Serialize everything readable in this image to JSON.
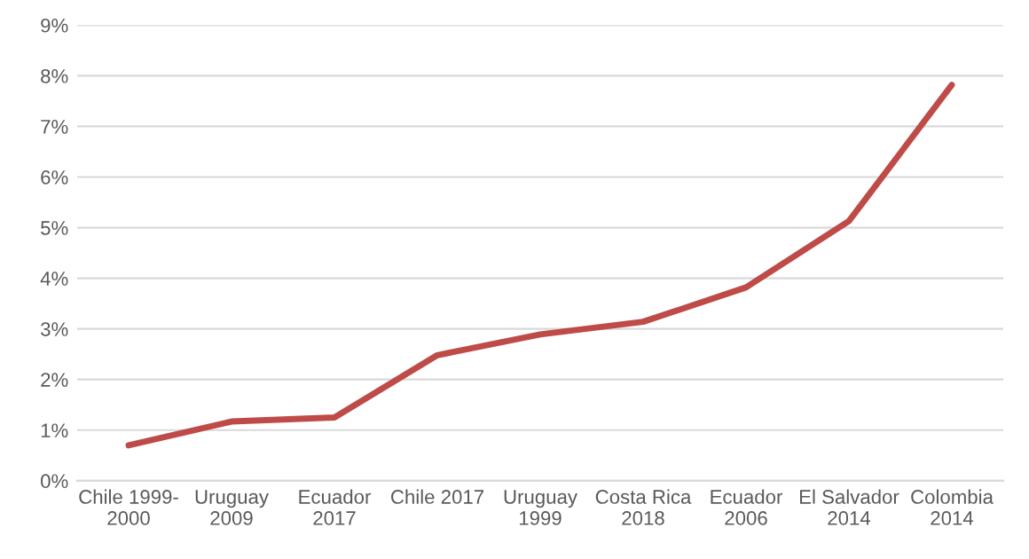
{
  "chart_data": {
    "type": "line",
    "categories": [
      "Chile 1999-\n2000",
      "Uruguay\n2009",
      "Ecuador\n2017",
      "Chile 2017",
      "Uruguay\n1999",
      "Costa Rica\n2018",
      "Ecuador\n2006",
      "El Salvador\n2014",
      "Colombia\n2014"
    ],
    "series": [
      {
        "color": "#be4b48",
        "values": [
          0.7,
          1.17,
          1.25,
          2.48,
          2.89,
          3.14,
          3.82,
          5.13,
          7.82
        ]
      }
    ],
    "ylim": [
      0,
      9
    ],
    "yticks": [
      {
        "value": 0,
        "label": "0%"
      },
      {
        "value": 1,
        "label": "1%"
      },
      {
        "value": 2,
        "label": "2%"
      },
      {
        "value": 3,
        "label": "3%"
      },
      {
        "value": 4,
        "label": "4%"
      },
      {
        "value": 5,
        "label": "5%"
      },
      {
        "value": 6,
        "label": "6%"
      },
      {
        "value": 7,
        "label": "7%"
      },
      {
        "value": 8,
        "label": "8%"
      },
      {
        "value": 9,
        "label": "9%"
      }
    ],
    "grid": "y",
    "legend": false,
    "marker": "none",
    "line_style": "solid"
  }
}
